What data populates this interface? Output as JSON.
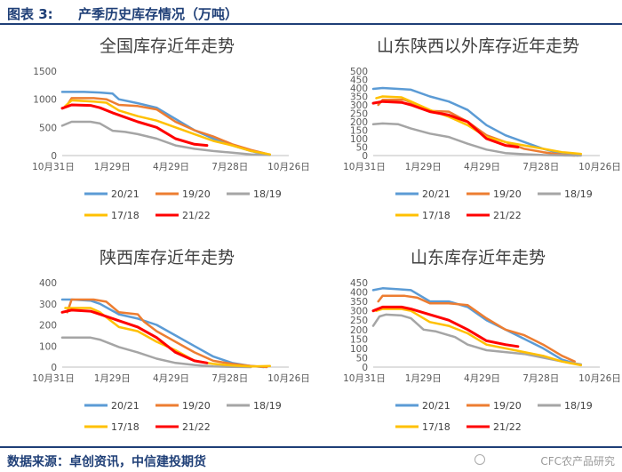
{
  "header": {
    "label": "图表 3:",
    "title": "产季历史库存情况（万吨）"
  },
  "footer": {
    "source": "数据来源：卓创资讯，中信建投期货",
    "watermark": "CFC农产品研究"
  },
  "colors": {
    "20/21": "#5b9bd5",
    "19/20": "#ed7d31",
    "18/19": "#a5a5a5",
    "17/18": "#ffc000",
    "21/22": "#ff0000",
    "rule": "#1f3f77"
  },
  "chart_data": [
    {
      "type": "line",
      "title": "全国库存近年走势",
      "x_ticks": [
        "10月31日",
        "1月29日",
        "4月29日",
        "7月28日",
        "10月26日"
      ],
      "ylim": [
        0,
        1500
      ],
      "y_ticks": [
        0,
        500,
        1000,
        1500
      ],
      "legend": [
        "20/21",
        "19/20",
        "18/19",
        "17/18",
        "21/22"
      ],
      "series": [
        {
          "name": "20/21",
          "x": [
            0,
            35,
            60,
            80,
            90,
            120,
            150,
            180,
            210,
            240,
            270,
            300,
            320
          ],
          "y": [
            1130,
            1130,
            1120,
            1100,
            1000,
            930,
            850,
            650,
            450,
            300,
            180,
            80,
            30
          ]
        },
        {
          "name": "19/20",
          "x": [
            8,
            15,
            50,
            70,
            90,
            120,
            150,
            180,
            210,
            240,
            270,
            300,
            325
          ],
          "y": [
            900,
            1020,
            1020,
            1000,
            900,
            880,
            820,
            600,
            450,
            340,
            200,
            100,
            30
          ]
        },
        {
          "name": "18/19",
          "x": [
            0,
            15,
            45,
            60,
            80,
            100,
            120,
            150,
            180,
            210,
            240,
            270,
            300,
            330
          ],
          "y": [
            530,
            600,
            600,
            570,
            440,
            420,
            380,
            300,
            180,
            120,
            80,
            50,
            20,
            10
          ]
        },
        {
          "name": "17/18",
          "x": [
            5,
            15,
            50,
            70,
            90,
            120,
            150,
            180,
            210,
            240,
            270,
            300,
            330
          ],
          "y": [
            880,
            980,
            960,
            940,
            800,
            700,
            620,
            500,
            380,
            260,
            180,
            80,
            20
          ]
        },
        {
          "name": "21/22",
          "x": [
            0,
            15,
            45,
            60,
            80,
            100,
            120,
            150,
            180,
            210,
            230
          ],
          "y": [
            840,
            900,
            890,
            850,
            760,
            680,
            600,
            500,
            300,
            200,
            180
          ]
        }
      ]
    },
    {
      "type": "line",
      "title": "山东陕西以外库存近年走势",
      "x_ticks": [
        "10月31日",
        "1月29日",
        "4月29日",
        "7月28日",
        "10月26日"
      ],
      "ylim": [
        0,
        500
      ],
      "y_ticks": [
        0,
        50,
        100,
        150,
        200,
        250,
        300,
        350,
        400,
        450,
        500
      ],
      "legend": [
        "20/21",
        "19/20",
        "18/19",
        "17/18",
        "21/22"
      ],
      "series": [
        {
          "name": "20/21",
          "x": [
            0,
            15,
            40,
            60,
            90,
            120,
            150,
            180,
            210,
            240,
            270,
            300,
            325
          ],
          "y": [
            395,
            400,
            395,
            390,
            350,
            320,
            270,
            180,
            120,
            80,
            40,
            10,
            0
          ]
        },
        {
          "name": "19/20",
          "x": [
            8,
            15,
            50,
            70,
            90,
            120,
            150,
            180,
            210,
            240,
            270,
            300,
            320
          ],
          "y": [
            300,
            330,
            330,
            300,
            265,
            260,
            200,
            120,
            80,
            40,
            20,
            5,
            0
          ]
        },
        {
          "name": "18/19",
          "x": [
            0,
            15,
            40,
            60,
            90,
            120,
            150,
            180,
            210,
            240,
            270,
            300,
            330
          ],
          "y": [
            185,
            190,
            185,
            160,
            130,
            110,
            70,
            35,
            15,
            8,
            3,
            1,
            0
          ]
        },
        {
          "name": "17/18",
          "x": [
            5,
            15,
            45,
            60,
            90,
            120,
            150,
            180,
            210,
            240,
            270,
            300,
            330
          ],
          "y": [
            340,
            350,
            345,
            320,
            270,
            230,
            180,
            110,
            80,
            60,
            40,
            20,
            10
          ]
        },
        {
          "name": "21/22",
          "x": [
            0,
            15,
            45,
            60,
            90,
            120,
            150,
            180,
            210,
            230
          ],
          "y": [
            310,
            320,
            315,
            300,
            260,
            240,
            200,
            100,
            60,
            50
          ]
        }
      ]
    },
    {
      "type": "line",
      "title": "陕西库存近年走势",
      "x_ticks": [
        "10月31日",
        "1月29日",
        "4月29日",
        "7月28日",
        "10月26日"
      ],
      "ylim": [
        0,
        400
      ],
      "y_ticks": [
        0,
        100,
        200,
        300,
        400
      ],
      "legend": [
        "20/21",
        "19/20",
        "18/19",
        "17/18",
        "21/22"
      ],
      "series": [
        {
          "name": "20/21",
          "x": [
            0,
            15,
            45,
            60,
            90,
            120,
            150,
            180,
            210,
            240,
            270,
            300,
            320
          ],
          "y": [
            320,
            320,
            315,
            300,
            250,
            230,
            200,
            150,
            100,
            50,
            20,
            5,
            0
          ]
        },
        {
          "name": "19/20",
          "x": [
            8,
            15,
            50,
            70,
            90,
            120,
            130,
            150,
            180,
            210,
            240,
            270,
            300,
            325
          ],
          "y": [
            260,
            320,
            320,
            310,
            260,
            250,
            215,
            170,
            120,
            70,
            30,
            15,
            5,
            0
          ]
        },
        {
          "name": "18/19",
          "x": [
            0,
            15,
            45,
            60,
            90,
            120,
            150,
            180,
            210,
            240,
            270,
            300
          ],
          "y": [
            140,
            140,
            140,
            130,
            95,
            70,
            40,
            20,
            10,
            3,
            1,
            0
          ]
        },
        {
          "name": "17/18",
          "x": [
            5,
            15,
            45,
            60,
            90,
            120,
            150,
            180,
            210,
            240,
            270,
            300,
            330
          ],
          "y": [
            280,
            280,
            280,
            260,
            190,
            170,
            120,
            80,
            30,
            15,
            8,
            3,
            5
          ]
        },
        {
          "name": "21/22",
          "x": [
            0,
            15,
            45,
            60,
            90,
            120,
            150,
            180,
            210,
            230
          ],
          "y": [
            260,
            270,
            265,
            250,
            220,
            190,
            140,
            70,
            30,
            20
          ]
        }
      ]
    },
    {
      "type": "line",
      "title": "山东库存近年走势",
      "x_ticks": [
        "10月31日",
        "1月29日",
        "4月29日",
        "7月28日",
        "10月26日"
      ],
      "ylim": [
        0,
        450
      ],
      "y_ticks": [
        0,
        50,
        100,
        150,
        200,
        250,
        300,
        350,
        400,
        450
      ],
      "legend": [
        "20/21",
        "19/20",
        "18/19",
        "17/18",
        "21/22"
      ],
      "series": [
        {
          "name": "20/21",
          "x": [
            0,
            15,
            40,
            60,
            90,
            120,
            150,
            180,
            210,
            240,
            270,
            300,
            320
          ],
          "y": [
            410,
            420,
            415,
            410,
            350,
            350,
            320,
            250,
            200,
            150,
            100,
            40,
            20
          ]
        },
        {
          "name": "19/20",
          "x": [
            8,
            15,
            50,
            70,
            90,
            120,
            150,
            180,
            210,
            240,
            270,
            300,
            320
          ],
          "y": [
            350,
            380,
            380,
            370,
            340,
            340,
            330,
            260,
            200,
            170,
            120,
            60,
            30
          ]
        },
        {
          "name": "18/19",
          "x": [
            0,
            10,
            20,
            45,
            60,
            80,
            100,
            130,
            150,
            180,
            210,
            240,
            270,
            300,
            330
          ],
          "y": [
            220,
            270,
            280,
            275,
            260,
            200,
            190,
            160,
            120,
            90,
            80,
            70,
            50,
            30,
            15
          ]
        },
        {
          "name": "17/18",
          "x": [
            5,
            15,
            45,
            60,
            90,
            120,
            150,
            180,
            210,
            240,
            270,
            300,
            330
          ],
          "y": [
            300,
            310,
            310,
            300,
            240,
            220,
            180,
            120,
            100,
            80,
            60,
            30,
            10
          ]
        },
        {
          "name": "21/22",
          "x": [
            0,
            15,
            45,
            60,
            90,
            120,
            150,
            180,
            210,
            230
          ],
          "y": [
            300,
            320,
            320,
            310,
            280,
            250,
            200,
            140,
            120,
            110
          ]
        }
      ]
    }
  ]
}
